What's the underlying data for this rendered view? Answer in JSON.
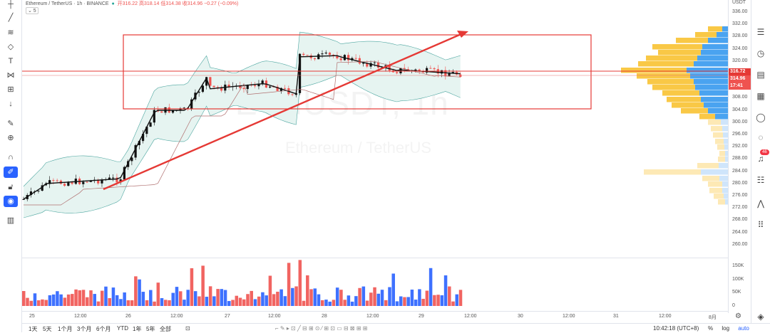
{
  "header": {
    "symbol": "Ethereum / TetherUS · 1h · BINANCE",
    "open": "开316.22",
    "high": "高318.14",
    "low": "低314.38",
    "close": "收314.96",
    "change": "−0.27 (−0.09%)",
    "collapse_label": "⌄ 5"
  },
  "watermark": {
    "ticker": "ETHUSDT, 1h",
    "name": "Ethereum / TetherUS"
  },
  "price_axis": {
    "currency": "USDT",
    "ticks": [
      "336.00",
      "332.00",
      "328.00",
      "324.00",
      "320.00",
      "316.00",
      "312.00",
      "308.00",
      "304.00",
      "300.00",
      "296.00",
      "292.00",
      "288.00",
      "284.00",
      "280.00",
      "276.00",
      "272.00",
      "268.00",
      "264.00",
      "260.00"
    ],
    "last_price": "316.72",
    "current_price": "314.96",
    "countdown": "17:41",
    "volume_ticks": [
      "150K",
      "100K",
      "50K",
      "0"
    ]
  },
  "time_axis": {
    "labels": [
      "25",
      "12:00",
      "26",
      "12:00",
      "27",
      "12:00",
      "28",
      "12:00",
      "29",
      "12:00",
      "30",
      "12:00",
      "31",
      "12:00",
      "8月"
    ]
  },
  "bottom_bar": {
    "ranges": [
      "1天",
      "5天",
      "1个月",
      "3个月",
      "6个月",
      "YTD",
      "1年",
      "5年",
      "全部"
    ],
    "clock": "10:42:18 (UTC+8)",
    "percent": "%",
    "log": "log",
    "auto": "auto"
  },
  "colors": {
    "up": "#26a69a",
    "down": "#ef5350",
    "candle_up": "#000000",
    "box": "#e53935",
    "arrow": "#e53935",
    "accent": "#2962ff",
    "bb_fill": "#e8f4f2",
    "vol_up": "#2962ff",
    "vol_down": "#ef5350",
    "vp_yellow": "#f9c846",
    "vp_blue": "#4aa3f0"
  },
  "left_toolbar": {
    "icons": [
      "crosshair-icon",
      "trend-line-icon",
      "fib-icon",
      "brush-icon",
      "text-icon",
      "pattern-icon",
      "measure-icon",
      "arrow-down-icon",
      "ruler-icon",
      "zoom-in-icon",
      "magnet-icon",
      "lock-drawing-icon",
      "lock-icon",
      "eye-icon",
      "trash-icon"
    ]
  },
  "right_toolbar": {
    "icons": [
      "watchlist-icon",
      "alert-icon",
      "news-icon",
      "chat-icon",
      "ideas-icon",
      "calendar-icon",
      "notification-icon",
      "chart-icon",
      "layers-icon",
      "grid-icon"
    ],
    "badge": "46"
  }
}
